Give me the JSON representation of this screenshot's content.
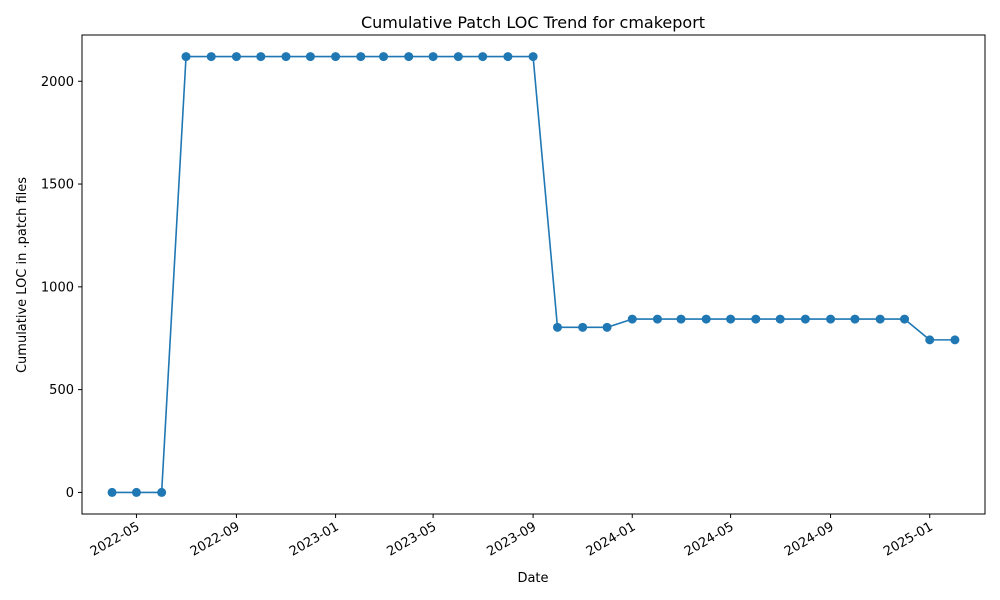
{
  "chart_data": {
    "type": "line",
    "title": "Cumulative Patch LOC Trend for cmakeport",
    "xlabel": "Date",
    "ylabel": "Cumulative LOC in .patch files",
    "xlim": [
      "2022-02-23",
      "2025-03-10"
    ],
    "ylim": [
      -105,
      2225
    ],
    "grid": false,
    "x_ticks": [
      "2022-05",
      "2022-09",
      "2023-01",
      "2023-05",
      "2023-09",
      "2024-01",
      "2024-05",
      "2024-09",
      "2025-01"
    ],
    "y_ticks": [
      0,
      500,
      1000,
      1500,
      2000
    ],
    "colors": {
      "line": "#1f77b4"
    },
    "series": [
      {
        "x": [
          "2022-04-01",
          "2022-05-01",
          "2022-06-01",
          "2022-07-01",
          "2022-08-01",
          "2022-09-01",
          "2022-10-01",
          "2022-11-01",
          "2022-12-01",
          "2023-01-01",
          "2023-02-01",
          "2023-03-01",
          "2023-04-01",
          "2023-05-01",
          "2023-06-01",
          "2023-07-01",
          "2023-08-01",
          "2023-09-01",
          "2023-10-01",
          "2023-11-01",
          "2023-12-01",
          "2024-01-01",
          "2024-02-01",
          "2024-03-01",
          "2024-04-01",
          "2024-05-01",
          "2024-06-01",
          "2024-07-01",
          "2024-08-01",
          "2024-09-01",
          "2024-10-01",
          "2024-11-01",
          "2024-12-01",
          "2025-01-01",
          "2025-02-01"
        ],
        "values": [
          0,
          0,
          0,
          2120,
          2120,
          2120,
          2120,
          2120,
          2120,
          2120,
          2120,
          2120,
          2120,
          2120,
          2120,
          2120,
          2120,
          2120,
          803,
          803,
          803,
          843,
          843,
          843,
          843,
          843,
          843,
          843,
          843,
          843,
          843,
          843,
          843,
          742,
          742
        ]
      }
    ]
  }
}
